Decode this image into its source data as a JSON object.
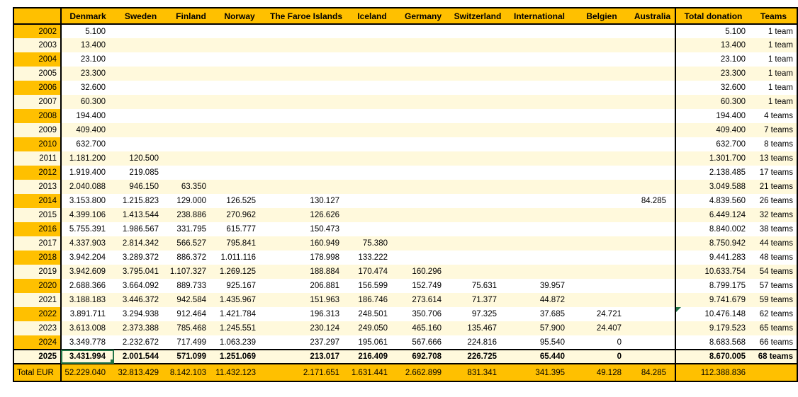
{
  "sheet": {
    "columns": [
      {
        "key": "year",
        "label": ""
      },
      {
        "key": "denmark",
        "label": "Denmark"
      },
      {
        "key": "sweden",
        "label": "Sweden"
      },
      {
        "key": "finland",
        "label": "Finland"
      },
      {
        "key": "norway",
        "label": "Norway"
      },
      {
        "key": "faroe-islands",
        "label": "The Faroe Islands"
      },
      {
        "key": "iceland",
        "label": "Iceland"
      },
      {
        "key": "germany",
        "label": "Germany"
      },
      {
        "key": "switzerland",
        "label": "Switzerland"
      },
      {
        "key": "international",
        "label": "International"
      },
      {
        "key": "belgien",
        "label": "Belgien"
      },
      {
        "key": "australia",
        "label": "Australia"
      },
      {
        "key": "total-donation",
        "label": "Total donation"
      },
      {
        "key": "teams",
        "label": "Teams"
      }
    ],
    "rows": [
      {
        "year": "2002",
        "cells": [
          "5.100",
          "",
          "",
          "",
          "",
          "",
          "",
          "",
          "",
          "",
          ""
        ],
        "total": "5.100",
        "teams": "1 team"
      },
      {
        "year": "2003",
        "cells": [
          "13.400",
          "",
          "",
          "",
          "",
          "",
          "",
          "",
          "",
          "",
          ""
        ],
        "total": "13.400",
        "teams": "1 team"
      },
      {
        "year": "2004",
        "cells": [
          "23.100",
          "",
          "",
          "",
          "",
          "",
          "",
          "",
          "",
          "",
          ""
        ],
        "total": "23.100",
        "teams": "1 team"
      },
      {
        "year": "2005",
        "cells": [
          "23.300",
          "",
          "",
          "",
          "",
          "",
          "",
          "",
          "",
          "",
          ""
        ],
        "total": "23.300",
        "teams": "1 team"
      },
      {
        "year": "2006",
        "cells": [
          "32.600",
          "",
          "",
          "",
          "",
          "",
          "",
          "",
          "",
          "",
          ""
        ],
        "total": "32.600",
        "teams": "1 team"
      },
      {
        "year": "2007",
        "cells": [
          "60.300",
          "",
          "",
          "",
          "",
          "",
          "",
          "",
          "",
          "",
          ""
        ],
        "total": "60.300",
        "teams": "1 team"
      },
      {
        "year": "2008",
        "cells": [
          "194.400",
          "",
          "",
          "",
          "",
          "",
          "",
          "",
          "",
          "",
          ""
        ],
        "total": "194.400",
        "teams": "4 teams"
      },
      {
        "year": "2009",
        "cells": [
          "409.400",
          "",
          "",
          "",
          "",
          "",
          "",
          "",
          "",
          "",
          ""
        ],
        "total": "409.400",
        "teams": "7 teams"
      },
      {
        "year": "2010",
        "cells": [
          "632.700",
          "",
          "",
          "",
          "",
          "",
          "",
          "",
          "",
          "",
          ""
        ],
        "total": "632.700",
        "teams": "8 teams"
      },
      {
        "year": "2011",
        "cells": [
          "1.181.200",
          "120.500",
          "",
          "",
          "",
          "",
          "",
          "",
          "",
          "",
          ""
        ],
        "total": "1.301.700",
        "teams": "13 teams"
      },
      {
        "year": "2012",
        "cells": [
          "1.919.400",
          "219.085",
          "",
          "",
          "",
          "",
          "",
          "",
          "",
          "",
          ""
        ],
        "total": "2.138.485",
        "teams": "17 teams"
      },
      {
        "year": "2013",
        "cells": [
          "2.040.088",
          "946.150",
          "63.350",
          "",
          "",
          "",
          "",
          "",
          "",
          "",
          ""
        ],
        "total": "3.049.588",
        "teams": "21 teams"
      },
      {
        "year": "2014",
        "cells": [
          "3.153.800",
          "1.215.823",
          "129.000",
          "126.525",
          "130.127",
          "",
          "",
          "",
          "",
          "",
          "84.285"
        ],
        "total": "4.839.560",
        "teams": "26 teams"
      },
      {
        "year": "2015",
        "cells": [
          "4.399.106",
          "1.413.544",
          "238.886",
          "270.962",
          "126.626",
          "",
          "",
          "",
          "",
          "",
          ""
        ],
        "total": "6.449.124",
        "teams": "32 teams"
      },
      {
        "year": "2016",
        "cells": [
          "5.755.391",
          "1.986.567",
          "331.795",
          "615.777",
          "150.473",
          "",
          "",
          "",
          "",
          "",
          ""
        ],
        "total": "8.840.002",
        "teams": "38 teams"
      },
      {
        "year": "2017",
        "cells": [
          "4.337.903",
          "2.814.342",
          "566.527",
          "795.841",
          "160.949",
          "75.380",
          "",
          "",
          "",
          "",
          ""
        ],
        "total": "8.750.942",
        "teams": "44 teams"
      },
      {
        "year": "2018",
        "cells": [
          "3.942.204",
          "3.289.372",
          "886.372",
          "1.011.116",
          "178.998",
          "133.222",
          "",
          "",
          "",
          "",
          ""
        ],
        "total": "9.441.283",
        "teams": "48 teams"
      },
      {
        "year": "2019",
        "cells": [
          "3.942.609",
          "3.795.041",
          "1.107.327",
          "1.269.125",
          "188.884",
          "170.474",
          "160.296",
          "",
          "",
          "",
          ""
        ],
        "total": "10.633.754",
        "teams": "54 teams"
      },
      {
        "year": "2020",
        "cells": [
          "2.688.366",
          "3.664.092",
          "889.733",
          "925.167",
          "206.881",
          "156.599",
          "152.749",
          "75.631",
          "39.957",
          "",
          ""
        ],
        "total": "8.799.175",
        "teams": "57 teams"
      },
      {
        "year": "2021",
        "cells": [
          "3.188.183",
          "3.446.372",
          "942.584",
          "1.435.967",
          "151.963",
          "186.746",
          "273.614",
          "71.377",
          "44.872",
          "",
          ""
        ],
        "total": "9.741.679",
        "teams": "59 teams"
      },
      {
        "year": "2022",
        "cells": [
          "3.891.711",
          "3.294.938",
          "912.464",
          "1.421.784",
          "196.313",
          "248.501",
          "350.706",
          "97.325",
          "37.685",
          "24.721",
          ""
        ],
        "total": "10.476.148",
        "teams": "62 teams"
      },
      {
        "year": "2023",
        "cells": [
          "3.613.008",
          "2.373.388",
          "785.468",
          "1.245.551",
          "230.124",
          "249.050",
          "465.160",
          "135.467",
          "57.900",
          "24.407",
          ""
        ],
        "total": "9.179.523",
        "teams": "65 teams"
      },
      {
        "year": "2024",
        "cells": [
          "3.349.778",
          "2.232.672",
          "717.499",
          "1.063.239",
          "237.297",
          "195.061",
          "567.666",
          "224.816",
          "95.540",
          "0",
          ""
        ],
        "total": "8.683.568",
        "teams": "66 teams"
      },
      {
        "year": "2025",
        "cells": [
          "3.431.994",
          "2.001.544",
          "571.099",
          "1.251.069",
          "213.017",
          "216.409",
          "692.708",
          "226.725",
          "65.440",
          "0",
          ""
        ],
        "total": "8.670.005",
        "teams": "68 teams"
      }
    ],
    "total_row": {
      "label": "Total EUR",
      "cells": [
        "52.229.040",
        "32.813.429",
        "8.142.103",
        "11.432.123",
        "2.171.651",
        "1.631.441",
        "2.662.899",
        "831.341",
        "341.395",
        "49.128",
        "84.285"
      ],
      "total": "112.388.836",
      "teams": ""
    },
    "annotations": {
      "selected_cell": {
        "row": "2025",
        "column": "denmark"
      },
      "error_indicator_cell": {
        "row": "2022",
        "column": "total-donation"
      }
    },
    "colors": {
      "header_fill": "#FFC000",
      "stripe_fill": "#FFF9DC",
      "row_fill": "#FFFFFF",
      "border": "#000000",
      "selection_green": "#217346",
      "error_indicator_green": "#217346"
    }
  }
}
